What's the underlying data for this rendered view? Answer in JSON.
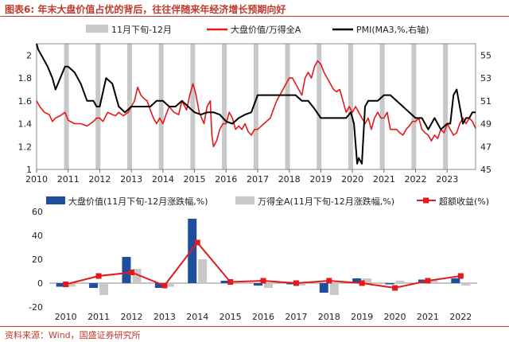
{
  "figure": {
    "title": "图表6:  年末大盘价值占优的背后，往往伴随来年经济增长预期向好",
    "source": "资料来源：Wind，国盛证券研究所"
  },
  "chart_data": [
    {
      "type": "line",
      "title": "",
      "x_range": [
        2010,
        2023.9
      ],
      "x_ticks": [
        "2010",
        "2011",
        "2012",
        "2013",
        "2014",
        "2015",
        "2016",
        "2017",
        "2018",
        "2019",
        "2020",
        "2021",
        "2022",
        "2023"
      ],
      "left_ylim": [
        1,
        2.1
      ],
      "left_ticks": [
        "1",
        "1.2",
        "1.4",
        "1.6",
        "1.8",
        "2"
      ],
      "right_ylim": [
        45,
        56
      ],
      "right_ticks": [
        "45",
        "47",
        "49",
        "51",
        "53",
        "55"
      ],
      "legend": [
        "11月下旬-12月",
        "大盘价值/万得全A",
        "PMI(MA3,%,右轴)"
      ],
      "colors": {
        "band": "#c8c8c8",
        "ratio": "#e31a1c",
        "pmi": "#000000"
      },
      "band_starts": [
        2010.87,
        2011.87,
        2012.87,
        2013.87,
        2014.87,
        2015.87,
        2016.87,
        2017.87,
        2018.87,
        2019.87,
        2020.87,
        2021.87,
        2022.87
      ],
      "series": [
        {
          "name": "大盘价值/万得全A",
          "axis": "left",
          "x": [
            2010.0,
            2010.1,
            2010.25,
            2010.4,
            2010.5,
            2010.6,
            2010.75,
            2010.9,
            2011.0,
            2011.2,
            2011.4,
            2011.6,
            2011.8,
            2011.9,
            2012.0,
            2012.1,
            2012.25,
            2012.4,
            2012.5,
            2012.6,
            2012.75,
            2012.9,
            2013.0,
            2013.1,
            2013.2,
            2013.3,
            2013.4,
            2013.5,
            2013.6,
            2013.7,
            2013.8,
            2013.9,
            2014.0,
            2014.1,
            2014.2,
            2014.35,
            2014.5,
            2014.6,
            2014.75,
            2014.85,
            2014.95,
            2015.0,
            2015.05,
            2015.15,
            2015.3,
            2015.4,
            2015.5,
            2015.55,
            2015.6,
            2015.7,
            2015.8,
            2015.9,
            2016.0,
            2016.1,
            2016.2,
            2016.3,
            2016.4,
            2016.5,
            2016.6,
            2016.7,
            2016.8,
            2016.9,
            2017.0,
            2017.2,
            2017.4,
            2017.6,
            2017.8,
            2017.9,
            2018.0,
            2018.1,
            2018.2,
            2018.3,
            2018.4,
            2018.5,
            2018.6,
            2018.7,
            2018.8,
            2018.9,
            2019.0,
            2019.1,
            2019.2,
            2019.3,
            2019.4,
            2019.5,
            2019.6,
            2019.7,
            2019.8,
            2019.9,
            2020.0,
            2020.1,
            2020.2,
            2020.3,
            2020.4,
            2020.5,
            2020.6,
            2020.7,
            2020.8,
            2020.9,
            2021.0,
            2021.1,
            2021.2,
            2021.3,
            2021.4,
            2021.5,
            2021.6,
            2021.7,
            2021.8,
            2021.9,
            2022.0,
            2022.1,
            2022.2,
            2022.3,
            2022.4,
            2022.5,
            2022.6,
            2022.7,
            2022.8,
            2022.9,
            2023.0,
            2023.1,
            2023.2,
            2023.3,
            2023.4,
            2023.5,
            2023.6,
            2023.7,
            2023.8,
            2023.9
          ],
          "y": [
            1.6,
            1.55,
            1.5,
            1.48,
            1.42,
            1.45,
            1.47,
            1.5,
            1.43,
            1.4,
            1.4,
            1.38,
            1.42,
            1.45,
            1.45,
            1.42,
            1.5,
            1.48,
            1.47,
            1.5,
            1.47,
            1.5,
            1.55,
            1.6,
            1.72,
            1.65,
            1.62,
            1.6,
            1.52,
            1.45,
            1.4,
            1.45,
            1.4,
            1.48,
            1.55,
            1.5,
            1.48,
            1.6,
            1.52,
            1.65,
            1.75,
            1.7,
            1.65,
            1.5,
            1.4,
            1.55,
            1.6,
            1.3,
            1.2,
            1.25,
            1.35,
            1.4,
            1.4,
            1.5,
            1.45,
            1.35,
            1.38,
            1.35,
            1.4,
            1.33,
            1.3,
            1.35,
            1.35,
            1.4,
            1.45,
            1.6,
            1.7,
            1.75,
            1.8,
            1.8,
            1.75,
            1.7,
            1.65,
            1.8,
            1.85,
            1.8,
            1.9,
            1.95,
            1.92,
            1.85,
            1.8,
            1.75,
            1.7,
            1.68,
            1.7,
            1.6,
            1.5,
            1.55,
            1.5,
            1.55,
            1.5,
            1.45,
            1.4,
            1.45,
            1.35,
            1.45,
            1.5,
            1.45,
            1.45,
            1.5,
            1.35,
            1.35,
            1.35,
            1.32,
            1.3,
            1.35,
            1.38,
            1.42,
            1.42,
            1.45,
            1.35,
            1.32,
            1.3,
            1.25,
            1.3,
            1.27,
            1.35,
            1.32,
            1.4,
            1.35,
            1.3,
            1.32,
            1.4,
            1.45,
            1.4,
            1.45,
            1.42,
            1.36
          ]
        },
        {
          "name": "PMI(MA3,%,右轴)",
          "axis": "right",
          "x": [
            2010.0,
            2010.05,
            2010.15,
            2010.35,
            2010.5,
            2010.6,
            2010.75,
            2010.9,
            2011.0,
            2011.2,
            2011.4,
            2011.6,
            2011.8,
            2011.9,
            2012.0,
            2012.2,
            2012.4,
            2012.6,
            2012.8,
            2013.0,
            2013.2,
            2013.4,
            2013.6,
            2013.8,
            2014.0,
            2014.2,
            2014.4,
            2014.6,
            2014.8,
            2015.0,
            2015.2,
            2015.4,
            2015.6,
            2015.8,
            2016.0,
            2016.2,
            2016.4,
            2016.6,
            2016.8,
            2017.0,
            2017.2,
            2017.4,
            2017.6,
            2017.8,
            2018.0,
            2018.2,
            2018.4,
            2018.6,
            2018.8,
            2019.0,
            2019.2,
            2019.4,
            2019.6,
            2019.8,
            2019.95,
            2020.05,
            2020.15,
            2020.2,
            2020.3,
            2020.4,
            2020.5,
            2020.6,
            2020.8,
            2021.0,
            2021.2,
            2021.4,
            2021.6,
            2021.8,
            2022.0,
            2022.2,
            2022.4,
            2022.6,
            2022.8,
            2023.0,
            2023.1,
            2023.2,
            2023.3,
            2023.4,
            2023.5,
            2023.6,
            2023.7,
            2023.8,
            2023.9
          ],
          "y": [
            56.0,
            55.5,
            55.0,
            54.0,
            53.0,
            52.0,
            53.0,
            54.0,
            54.0,
            53.5,
            52.5,
            51.0,
            51.0,
            50.5,
            50.5,
            53.0,
            52.5,
            50.5,
            50.0,
            50.5,
            50.5,
            50.5,
            50.5,
            51.0,
            51.0,
            50.5,
            50.5,
            51.0,
            50.5,
            50.0,
            49.8,
            50.0,
            50.0,
            49.8,
            49.2,
            49.0,
            49.5,
            49.8,
            50.0,
            51.5,
            51.5,
            51.5,
            51.5,
            51.5,
            51.5,
            51.5,
            51.0,
            51.0,
            50.3,
            49.5,
            49.5,
            49.5,
            49.5,
            49.5,
            50.0,
            49.0,
            45.5,
            46.0,
            45.5,
            50.5,
            51.0,
            51.0,
            51.0,
            51.5,
            51.5,
            51.0,
            50.5,
            50.0,
            49.5,
            49.5,
            48.5,
            49.5,
            48.5,
            49.0,
            49.0,
            51.5,
            52.0,
            50.5,
            49.0,
            49.5,
            49.5,
            50.0,
            50.0
          ]
        }
      ]
    },
    {
      "type": "bar",
      "title": "",
      "categories": [
        "2010",
        "2011",
        "2012",
        "2013",
        "2014",
        "2015",
        "2016",
        "2017",
        "2018",
        "2019",
        "2020",
        "2021",
        "2022"
      ],
      "ylim": [
        -20,
        60
      ],
      "y_ticks": [
        "-20",
        "0",
        "20",
        "40",
        "60"
      ],
      "legend": [
        "大盘价值(11月下旬-12月涨跌幅,%)",
        "万得全A(11月下旬-12月涨跌幅,%)",
        "超额收益(%)"
      ],
      "colors": {
        "value": "#1f4e9e",
        "wind": "#c8c8c8",
        "excess": "#e31a1c"
      },
      "series": [
        {
          "name": "大盘价值(11月下旬-12月涨跌幅,%)",
          "type": "bar",
          "values": [
            -3,
            -4,
            22,
            -4,
            54,
            2,
            -2,
            -1,
            -8,
            4,
            -1,
            3,
            4
          ]
        },
        {
          "name": "万得全A(11月下旬-12月涨跌幅,%)",
          "type": "bar",
          "values": [
            -3,
            -10,
            12,
            -3,
            20,
            1,
            -4,
            -2,
            -10,
            4,
            2,
            3,
            -2
          ]
        },
        {
          "name": "超额收益(%)",
          "type": "line",
          "values": [
            -1,
            6,
            9,
            -2,
            34,
            1,
            2,
            0,
            2,
            0,
            -4,
            2,
            6
          ]
        }
      ]
    }
  ]
}
